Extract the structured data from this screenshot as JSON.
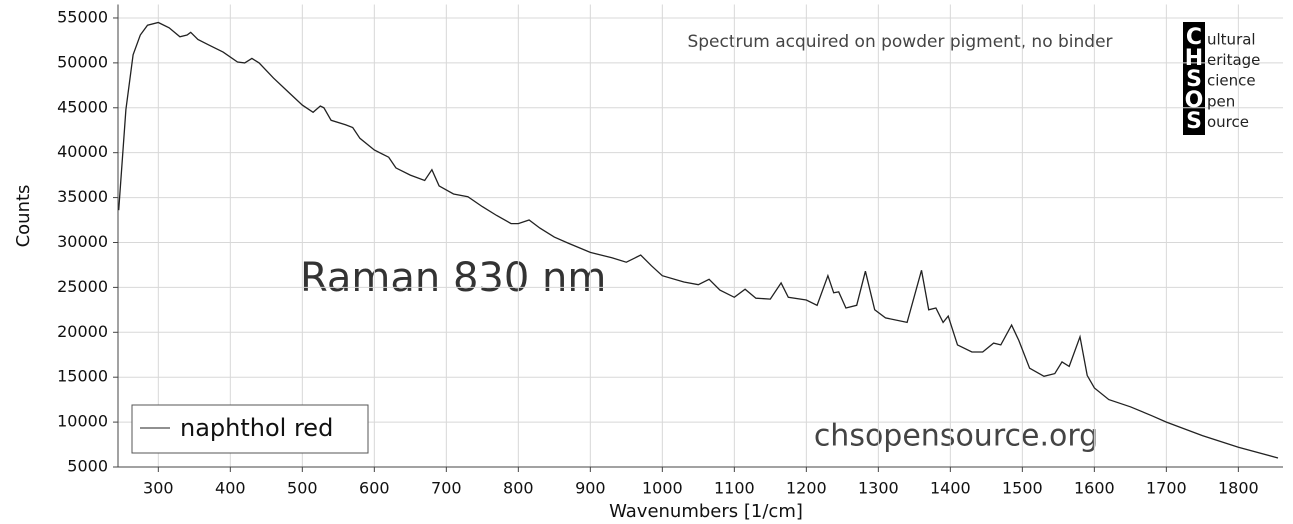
{
  "chart_data": {
    "type": "line",
    "annotation": "Spectrum acquired on powder pigment, no binder",
    "watermark": "Raman 830 nm",
    "website": "chsopensource.org",
    "logo": {
      "letters": [
        "C",
        "H",
        "S",
        "O",
        "S"
      ],
      "words": [
        "ultural",
        "eritage",
        "cience",
        "pen",
        "ource"
      ]
    },
    "x_label": "Wavenumbers [1/cm]",
    "y_label": "Counts",
    "xlim": [
      244,
      1862
    ],
    "ylim": [
      5000,
      56500
    ],
    "xticks": [
      300,
      400,
      500,
      600,
      700,
      800,
      900,
      1000,
      1100,
      1200,
      1300,
      1400,
      1500,
      1600,
      1700,
      1800
    ],
    "yticks": [
      5000,
      10000,
      15000,
      20000,
      25000,
      30000,
      35000,
      40000,
      45000,
      50000,
      55000
    ],
    "grid": true,
    "legend": "lower left",
    "x": [
      245,
      255,
      265,
      275,
      285,
      300,
      315,
      330,
      340,
      345,
      355,
      370,
      390,
      410,
      420,
      430,
      440,
      460,
      480,
      500,
      515,
      525,
      530,
      540,
      560,
      570,
      580,
      600,
      620,
      630,
      650,
      670,
      680,
      690,
      710,
      730,
      750,
      770,
      790,
      800,
      815,
      830,
      850,
      870,
      900,
      930,
      950,
      970,
      985,
      1000,
      1030,
      1050,
      1065,
      1080,
      1100,
      1115,
      1130,
      1150,
      1165,
      1175,
      1200,
      1215,
      1230,
      1238,
      1245,
      1255,
      1270,
      1282,
      1295,
      1310,
      1340,
      1360,
      1370,
      1380,
      1390,
      1397,
      1410,
      1430,
      1445,
      1460,
      1470,
      1485,
      1495,
      1510,
      1530,
      1545,
      1555,
      1565,
      1580,
      1590,
      1600,
      1620,
      1650,
      1680,
      1700,
      1750,
      1800,
      1855
    ],
    "series": [
      {
        "name": "naphthol red",
        "color": "#222222",
        "values": [
          33600,
          44800,
          50900,
          53100,
          54200,
          54500,
          53900,
          52900,
          53100,
          53400,
          52600,
          52000,
          51200,
          50100,
          50000,
          50500,
          50000,
          48300,
          46800,
          45300,
          44500,
          45200,
          45000,
          43600,
          43100,
          42800,
          41600,
          40300,
          39500,
          38300,
          37500,
          36900,
          38100,
          36300,
          35400,
          35100,
          34000,
          33000,
          32100,
          32100,
          32500,
          31600,
          30600,
          29900,
          28900,
          28300,
          27800,
          28600,
          27400,
          26300,
          25600,
          25300,
          25900,
          24700,
          23900,
          24800,
          23800,
          23700,
          25500,
          23900,
          23600,
          23000,
          26300,
          24400,
          24500,
          22700,
          23000,
          26800,
          22500,
          21600,
          21100,
          26900,
          22500,
          22700,
          21100,
          21800,
          18600,
          17800,
          17800,
          18800,
          18600,
          20800,
          19100,
          16000,
          15100,
          15400,
          16700,
          16200,
          19500,
          15200,
          13800,
          12500,
          11700,
          10700,
          10000,
          8500,
          7200,
          6000
        ]
      }
    ]
  }
}
